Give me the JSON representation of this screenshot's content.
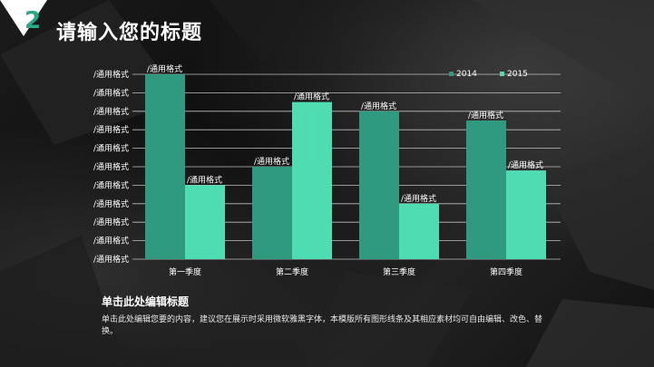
{
  "header": {
    "badge_number": "2",
    "title": "请输入您的标题"
  },
  "chart_data": {
    "type": "bar",
    "categories": [
      "第一季度",
      "第二季度",
      "第三季度",
      "第四季度"
    ],
    "series": [
      {
        "name": "2014",
        "values": [
          10,
          5,
          8,
          7.5
        ],
        "color": "#2f9a80"
      },
      {
        "name": "2015",
        "values": [
          4,
          8.5,
          3,
          4.8
        ],
        "color": "#4fdcb3"
      }
    ],
    "data_label": "/通用格式",
    "y_tick_labels": [
      "/通用格式",
      "/通用格式",
      "/通用格式",
      "/通用格式",
      "/通用格式",
      "/通用格式",
      "/通用格式",
      "/通用格式",
      "/通用格式",
      "/通用格式",
      "/通用格式"
    ],
    "ylim": [
      0,
      10
    ],
    "grid": true,
    "legend_position": "top-right",
    "title": "",
    "xlabel": "",
    "ylabel": ""
  },
  "footer": {
    "subtitle": "单击此处编辑标题",
    "body": "单击此处编辑您要的内容，建议您在展示时采用微软雅黑字体，本模版所有图形线条及其相应素材均可自由编辑、改色、替换。"
  }
}
